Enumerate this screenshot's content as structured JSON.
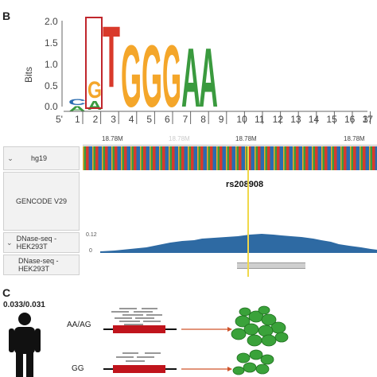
{
  "top_ticks": [
    "",
    "",
    "",
    "",
    ""
  ],
  "panel_b": {
    "letter": "B",
    "y_axis_label": "Bits",
    "y_ticks": [
      "2.0",
      "1.5",
      "1.0",
      "0.5",
      "0.0"
    ],
    "x_start": "5'",
    "x_end": "3'",
    "positions": [
      "1",
      "2",
      "3",
      "4",
      "5",
      "6",
      "7",
      "8",
      "9",
      "10",
      "11",
      "12",
      "13",
      "14",
      "15",
      "16",
      "17"
    ],
    "logo_letters": [
      "G",
      "T",
      "G",
      "G",
      "G",
      "A",
      "A"
    ],
    "colors": {
      "G": "#f4a62a",
      "T": "#d93a2b",
      "A": "#3a9a3e",
      "C": "#2a6cb0",
      "highlight": "#c0262c"
    }
  },
  "browser": {
    "coords": [
      "18.78M",
      "18.78M",
      "18.78M",
      "18.78M"
    ],
    "tracks": [
      {
        "label": "hg19",
        "chevron": "⌄"
      },
      {
        "label": "GENCODE V29",
        "chevron": ""
      },
      {
        "label": "DNase-seq - HEK293T",
        "chevron": "⌄"
      },
      {
        "label": "DNase-seq - HEK293T",
        "chevron": ""
      }
    ],
    "snp_label": "rs208908",
    "dnase_scale_top": "0.12",
    "dnase_scale_bottom": "0",
    "highlight_color": "#f0d84a",
    "signal_color": "#2e6aa3"
  },
  "panel_c": {
    "letter": "C",
    "ratio": "0.033/0.031",
    "genotypes": [
      "AA/AG",
      "GG"
    ]
  }
}
